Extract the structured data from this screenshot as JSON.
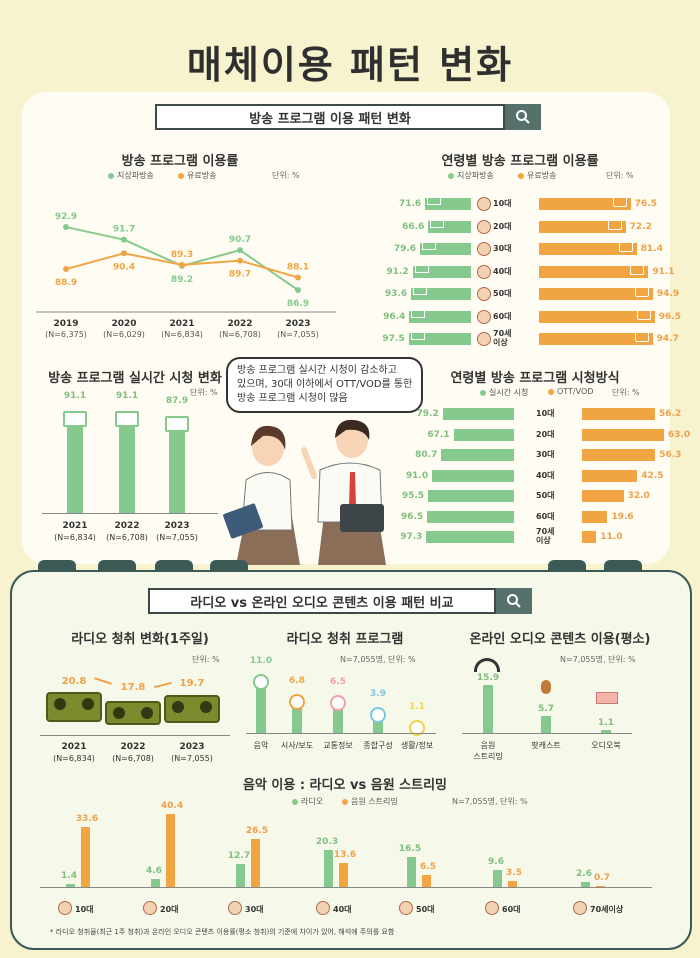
{
  "main_title": "매체이용 패턴 변화",
  "sec1": {
    "title": "방송 프로그램 이용 패턴 변화"
  },
  "sec2": {
    "title": "라디오 vs 온라인 오디오 콘텐츠 이용 패턴 비교"
  },
  "icons": {
    "search": "search-icon"
  },
  "colors": {
    "terrestrial": "#85c98e",
    "paid": "#f1a542",
    "dark": "#3b5a55"
  },
  "bubble": {
    "line1": "방송 프로그램 실시간 시청이 감소하고",
    "line2": "있으며, 30대 이하에서 OTT/VOD를 통한",
    "line3": "방송 프로그램 시청이 많음"
  },
  "footnote": "* 라디오 청취율(최근 1주 청취)과 온라인 오디오 콘텐츠 이용률(평소 청취)의 기준에 차이가 있어, 해석에 주의를 요함",
  "chart_data": [
    {
      "type": "line",
      "title": "방송 프로그램 이용률",
      "unit": "단위: %",
      "categories": [
        "2019",
        "2020",
        "2021",
        "2022",
        "2023"
      ],
      "n_labels": [
        "(N=6,375)",
        "(N=6,029)",
        "(N=6,834)",
        "(N=6,708)",
        "(N=7,055)"
      ],
      "ylim": [
        80,
        100
      ],
      "series": [
        {
          "name": "지상파방송",
          "values": [
            92.9,
            91.7,
            89.2,
            90.7,
            86.9
          ]
        },
        {
          "name": "유료방송",
          "values": [
            88.9,
            90.4,
            89.3,
            89.7,
            88.1
          ]
        }
      ]
    },
    {
      "type": "bar",
      "orientation": "horizontal-diverging",
      "title": "연령별 방송 프로그램 이용률",
      "unit": "단위: %",
      "categories": [
        "10대",
        "20대",
        "30대",
        "40대",
        "50대",
        "60대",
        "70세 이상"
      ],
      "series": [
        {
          "name": "지상파방송",
          "values": [
            71.6,
            66.6,
            79.6,
            91.2,
            93.6,
            96.4,
            97.5
          ]
        },
        {
          "name": "유료방송",
          "values": [
            76.5,
            72.2,
            81.4,
            91.1,
            94.9,
            96.5,
            94.7
          ]
        }
      ]
    },
    {
      "type": "bar",
      "title": "방송 프로그램 실시간 시청 변화",
      "unit": "단위: %",
      "categories": [
        "2021",
        "2022",
        "2023"
      ],
      "n_labels": [
        "(N=6,834)",
        "(N=6,708)",
        "(N=7,055)"
      ],
      "values": [
        91.1,
        91.1,
        87.9
      ]
    },
    {
      "type": "bar",
      "orientation": "horizontal-diverging",
      "title": "연령별 방송 프로그램 시청방식",
      "unit": "단위: %",
      "categories": [
        "10대",
        "20대",
        "30대",
        "40대",
        "50대",
        "60대",
        "70세 이상"
      ],
      "series": [
        {
          "name": "실시간 시청",
          "values": [
            79.2,
            67.1,
            80.7,
            91.0,
            95.5,
            96.5,
            97.3
          ]
        },
        {
          "name": "OTT/VOD",
          "values": [
            56.2,
            63.0,
            56.3,
            42.5,
            32.0,
            19.6,
            11.0
          ]
        }
      ]
    },
    {
      "type": "bar",
      "title": "라디오 청취 변화(1주일)",
      "unit": "단위: %",
      "categories": [
        "2021",
        "2022",
        "2023"
      ],
      "n_labels": [
        "(N=6,834)",
        "(N=6,708)",
        "(N=7,055)"
      ],
      "values": [
        20.8,
        17.8,
        19.7
      ]
    },
    {
      "type": "bar",
      "title": "라디오 청취 프로그램",
      "unit": "N=7,055명, 단위: %",
      "categories": [
        "음악",
        "시사/보도",
        "교통정보",
        "종합구성",
        "생활/정보"
      ],
      "values": [
        11.0,
        6.8,
        6.5,
        3.9,
        1.1
      ]
    },
    {
      "type": "bar",
      "title": "온라인 오디오 콘텐츠 이용(평소)",
      "unit": "N=7,055명, 단위: %",
      "categories": [
        "음원 스트리밍",
        "팟캐스트",
        "오디오북"
      ],
      "values": [
        15.9,
        5.7,
        1.1
      ]
    },
    {
      "type": "bar",
      "title": "음악 이용 : 라디오 vs 음원 스트리밍",
      "unit": "N=7,055명, 단위: %",
      "categories": [
        "10대",
        "20대",
        "30대",
        "40대",
        "50대",
        "60대",
        "70세이상"
      ],
      "series": [
        {
          "name": "라디오",
          "values": [
            1.4,
            4.6,
            12.7,
            20.3,
            16.5,
            9.6,
            2.6
          ]
        },
        {
          "name": "음원 스트리밍",
          "values": [
            33.6,
            40.4,
            26.5,
            13.6,
            6.5,
            3.5,
            0.7
          ]
        }
      ]
    }
  ]
}
